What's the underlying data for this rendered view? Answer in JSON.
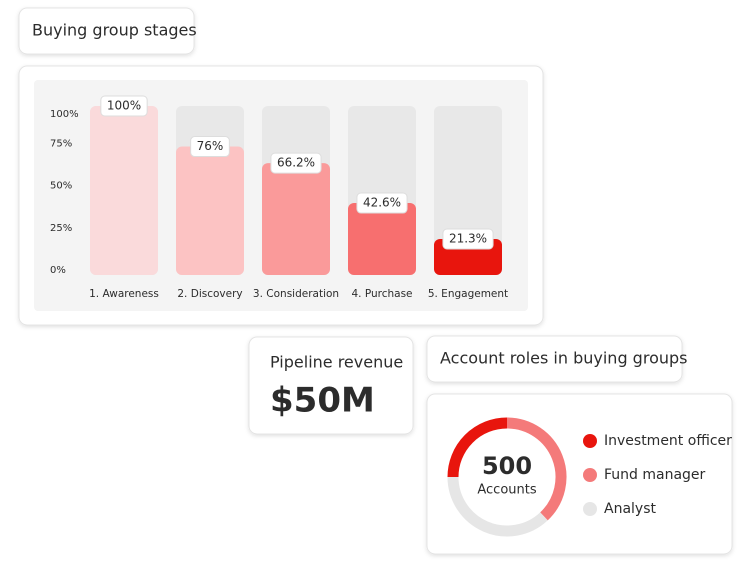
{
  "chart_data": [
    {
      "type": "bar",
      "title": "Buying group stages",
      "categories": [
        "1. Awareness",
        "2. Discovery",
        "3. Consideration",
        "4. Purchase",
        "5. Engagement"
      ],
      "values": [
        100,
        76,
        66.2,
        42.6,
        21.3
      ],
      "value_labels": [
        "100%",
        "76%",
        "66.2%",
        "42.6%",
        "21.3%"
      ],
      "colors": [
        "#fadadb",
        "#fcc3c3",
        "#fa9a9a",
        "#f76f6f",
        "#e8150d"
      ],
      "ylim": [
        0,
        100
      ],
      "yticks": [
        {
          "value": 0,
          "label": "0%"
        },
        {
          "value": 25,
          "label": "25%"
        },
        {
          "value": 50,
          "label": "50%"
        },
        {
          "value": 75,
          "label": "75%"
        },
        {
          "value": 100,
          "label": "100%"
        }
      ],
      "grid": false
    },
    {
      "type": "donut",
      "title": "Account roles in buying groups",
      "center_value": 500,
      "center_label": "Accounts",
      "categories": [
        "Investment officer",
        "Fund manager",
        "Analyst"
      ],
      "values": [
        25,
        38,
        37
      ],
      "colors": [
        "#e8150d",
        "#f47a7a",
        "#e6e6e6"
      ]
    }
  ],
  "kpi": {
    "label": "Pipeline revenue",
    "value": "$50M"
  }
}
